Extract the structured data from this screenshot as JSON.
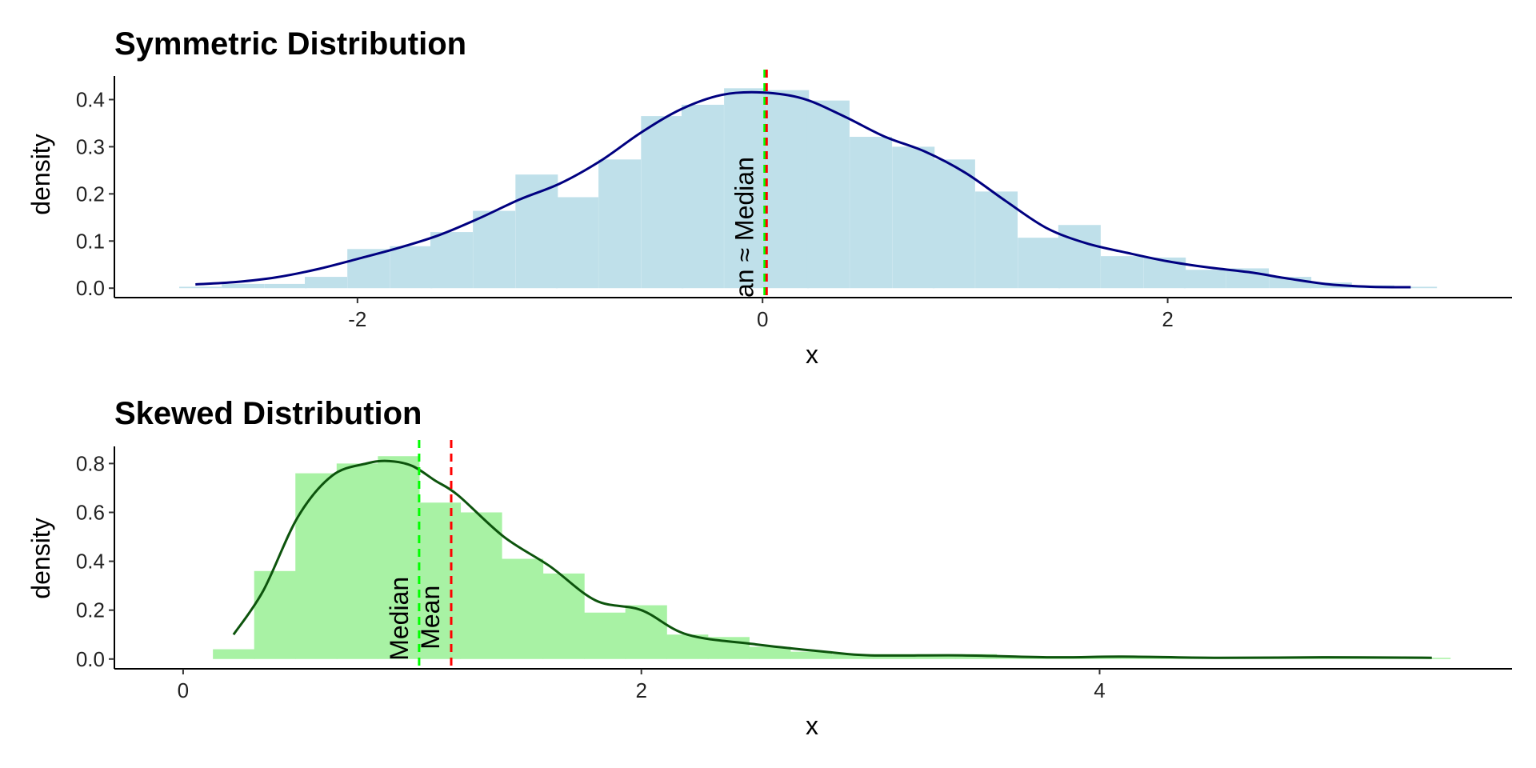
{
  "colors": {
    "background": "#ffffff",
    "symmetric_fill": "#bfe0ea",
    "symmetric_curve": "#000080",
    "skewed_fill": "#a8f2a4",
    "skewed_curve": "#0d540d",
    "mean_line": "#ff0000",
    "median_line": "#00ff00"
  },
  "chart_data": [
    {
      "type": "bar",
      "title": "Symmetric Distribution",
      "xlabel": "x",
      "ylabel": "density",
      "xlim": [
        -3.2,
        3.7
      ],
      "ylim": [
        -0.02,
        0.45
      ],
      "xticks": [
        -2,
        0,
        2
      ],
      "xtick_labels": [
        "-2",
        "0",
        "2"
      ],
      "yticks": [
        0.0,
        0.1,
        0.2,
        0.3,
        0.4
      ],
      "ytick_labels": [
        "0.0",
        "0.1",
        "0.2",
        "0.3",
        "0.4"
      ],
      "grid": false,
      "legend": "none",
      "histogram": {
        "bin_width": 0.207,
        "bins": [
          {
            "x0": -2.88,
            "density": 0.003
          },
          {
            "x0": -2.67,
            "density": 0.009
          },
          {
            "x0": -2.46,
            "density": 0.009
          },
          {
            "x0": -2.26,
            "density": 0.024
          },
          {
            "x0": -2.05,
            "density": 0.083
          },
          {
            "x0": -1.84,
            "density": 0.089
          },
          {
            "x0": -1.64,
            "density": 0.119
          },
          {
            "x0": -1.43,
            "density": 0.164
          },
          {
            "x0": -1.22,
            "density": 0.241
          },
          {
            "x0": -1.02,
            "density": 0.193
          },
          {
            "x0": -0.81,
            "density": 0.273
          },
          {
            "x0": -0.6,
            "density": 0.365
          },
          {
            "x0": -0.4,
            "density": 0.389
          },
          {
            "x0": -0.19,
            "density": 0.424
          },
          {
            "x0": 0.02,
            "density": 0.42
          },
          {
            "x0": 0.22,
            "density": 0.398
          },
          {
            "x0": 0.43,
            "density": 0.321
          },
          {
            "x0": 0.64,
            "density": 0.3
          },
          {
            "x0": 0.84,
            "density": 0.273
          },
          {
            "x0": 1.05,
            "density": 0.205
          },
          {
            "x0": 1.26,
            "density": 0.107
          },
          {
            "x0": 1.46,
            "density": 0.134
          },
          {
            "x0": 1.67,
            "density": 0.068
          },
          {
            "x0": 1.88,
            "density": 0.065
          },
          {
            "x0": 2.08,
            "density": 0.039
          },
          {
            "x0": 2.29,
            "density": 0.042
          },
          {
            "x0": 2.5,
            "density": 0.024
          },
          {
            "x0": 2.7,
            "density": 0.012
          },
          {
            "x0": 2.91,
            "density": 0.006
          },
          {
            "x0": 3.12,
            "density": 0.003
          }
        ]
      },
      "density_curve": {
        "x": [
          -2.8,
          -2.6,
          -2.4,
          -2.2,
          -2.0,
          -1.8,
          -1.6,
          -1.4,
          -1.2,
          -1.0,
          -0.8,
          -0.6,
          -0.4,
          -0.2,
          0.0,
          0.2,
          0.4,
          0.6,
          0.8,
          1.0,
          1.2,
          1.4,
          1.6,
          1.8,
          2.0,
          2.2,
          2.4,
          2.6,
          2.8,
          3.0,
          3.2
        ],
        "y": [
          0.008,
          0.013,
          0.023,
          0.04,
          0.062,
          0.085,
          0.112,
          0.148,
          0.188,
          0.222,
          0.27,
          0.33,
          0.38,
          0.41,
          0.415,
          0.402,
          0.365,
          0.322,
          0.29,
          0.245,
          0.185,
          0.128,
          0.095,
          0.075,
          0.057,
          0.044,
          0.034,
          0.02,
          0.008,
          0.003,
          0.002
        ]
      },
      "mean": 0.02,
      "median": 0.01,
      "annotation": "Mean ≈ Median",
      "annotation_visible": "an ≈ Median"
    },
    {
      "type": "bar",
      "title": "Skewed Distribution",
      "xlabel": "x",
      "ylabel": "density",
      "xlim": [
        -0.3,
        5.8
      ],
      "ylim": [
        -0.04,
        0.87
      ],
      "xticks": [
        0,
        2,
        4
      ],
      "xtick_labels": [
        "0",
        "2",
        "4"
      ],
      "yticks": [
        0.0,
        0.2,
        0.4,
        0.6,
        0.8
      ],
      "ytick_labels": [
        "0.0",
        "0.2",
        "0.4",
        "0.6",
        "0.8"
      ],
      "grid": false,
      "legend": "none",
      "histogram": {
        "bin_width": 0.18,
        "bins": [
          {
            "x0": 0.13,
            "density": 0.04
          },
          {
            "x0": 0.31,
            "density": 0.36
          },
          {
            "x0": 0.49,
            "density": 0.76
          },
          {
            "x0": 0.67,
            "density": 0.8
          },
          {
            "x0": 0.85,
            "density": 0.83
          },
          {
            "x0": 1.03,
            "density": 0.64
          },
          {
            "x0": 1.21,
            "density": 0.6
          },
          {
            "x0": 1.39,
            "density": 0.41
          },
          {
            "x0": 1.57,
            "density": 0.35
          },
          {
            "x0": 1.75,
            "density": 0.19
          },
          {
            "x0": 1.93,
            "density": 0.22
          },
          {
            "x0": 2.11,
            "density": 0.1
          },
          {
            "x0": 2.29,
            "density": 0.09
          },
          {
            "x0": 2.47,
            "density": 0.05
          },
          {
            "x0": 2.65,
            "density": 0.03
          },
          {
            "x0": 2.83,
            "density": 0.02
          },
          {
            "x0": 3.01,
            "density": 0.02
          },
          {
            "x0": 3.19,
            "density": 0.02
          },
          {
            "x0": 3.37,
            "density": 0.02
          },
          {
            "x0": 3.55,
            "density": 0.01
          },
          {
            "x0": 3.73,
            "density": 0.01
          },
          {
            "x0": 3.91,
            "density": 0.01
          },
          {
            "x0": 4.09,
            "density": 0.01
          },
          {
            "x0": 4.27,
            "density": 0.005
          },
          {
            "x0": 4.45,
            "density": 0.005
          },
          {
            "x0": 4.63,
            "density": 0.005
          },
          {
            "x0": 4.81,
            "density": 0.005
          },
          {
            "x0": 4.99,
            "density": 0.005
          },
          {
            "x0": 5.17,
            "density": 0.005
          },
          {
            "x0": 5.35,
            "density": 0.005
          }
        ]
      },
      "density_curve": {
        "x": [
          0.22,
          0.35,
          0.5,
          0.65,
          0.8,
          0.9,
          1.0,
          1.1,
          1.2,
          1.4,
          1.6,
          1.8,
          2.0,
          2.2,
          2.5,
          2.8,
          3.0,
          3.4,
          3.8,
          4.1,
          4.5,
          5.0,
          5.45
        ],
        "y": [
          0.1,
          0.28,
          0.58,
          0.75,
          0.8,
          0.81,
          0.79,
          0.73,
          0.67,
          0.5,
          0.38,
          0.24,
          0.2,
          0.1,
          0.06,
          0.03,
          0.015,
          0.015,
          0.007,
          0.01,
          0.005,
          0.007,
          0.005
        ]
      },
      "mean": 1.17,
      "median": 1.03,
      "annotations": [
        "Median",
        "Mean"
      ]
    }
  ]
}
